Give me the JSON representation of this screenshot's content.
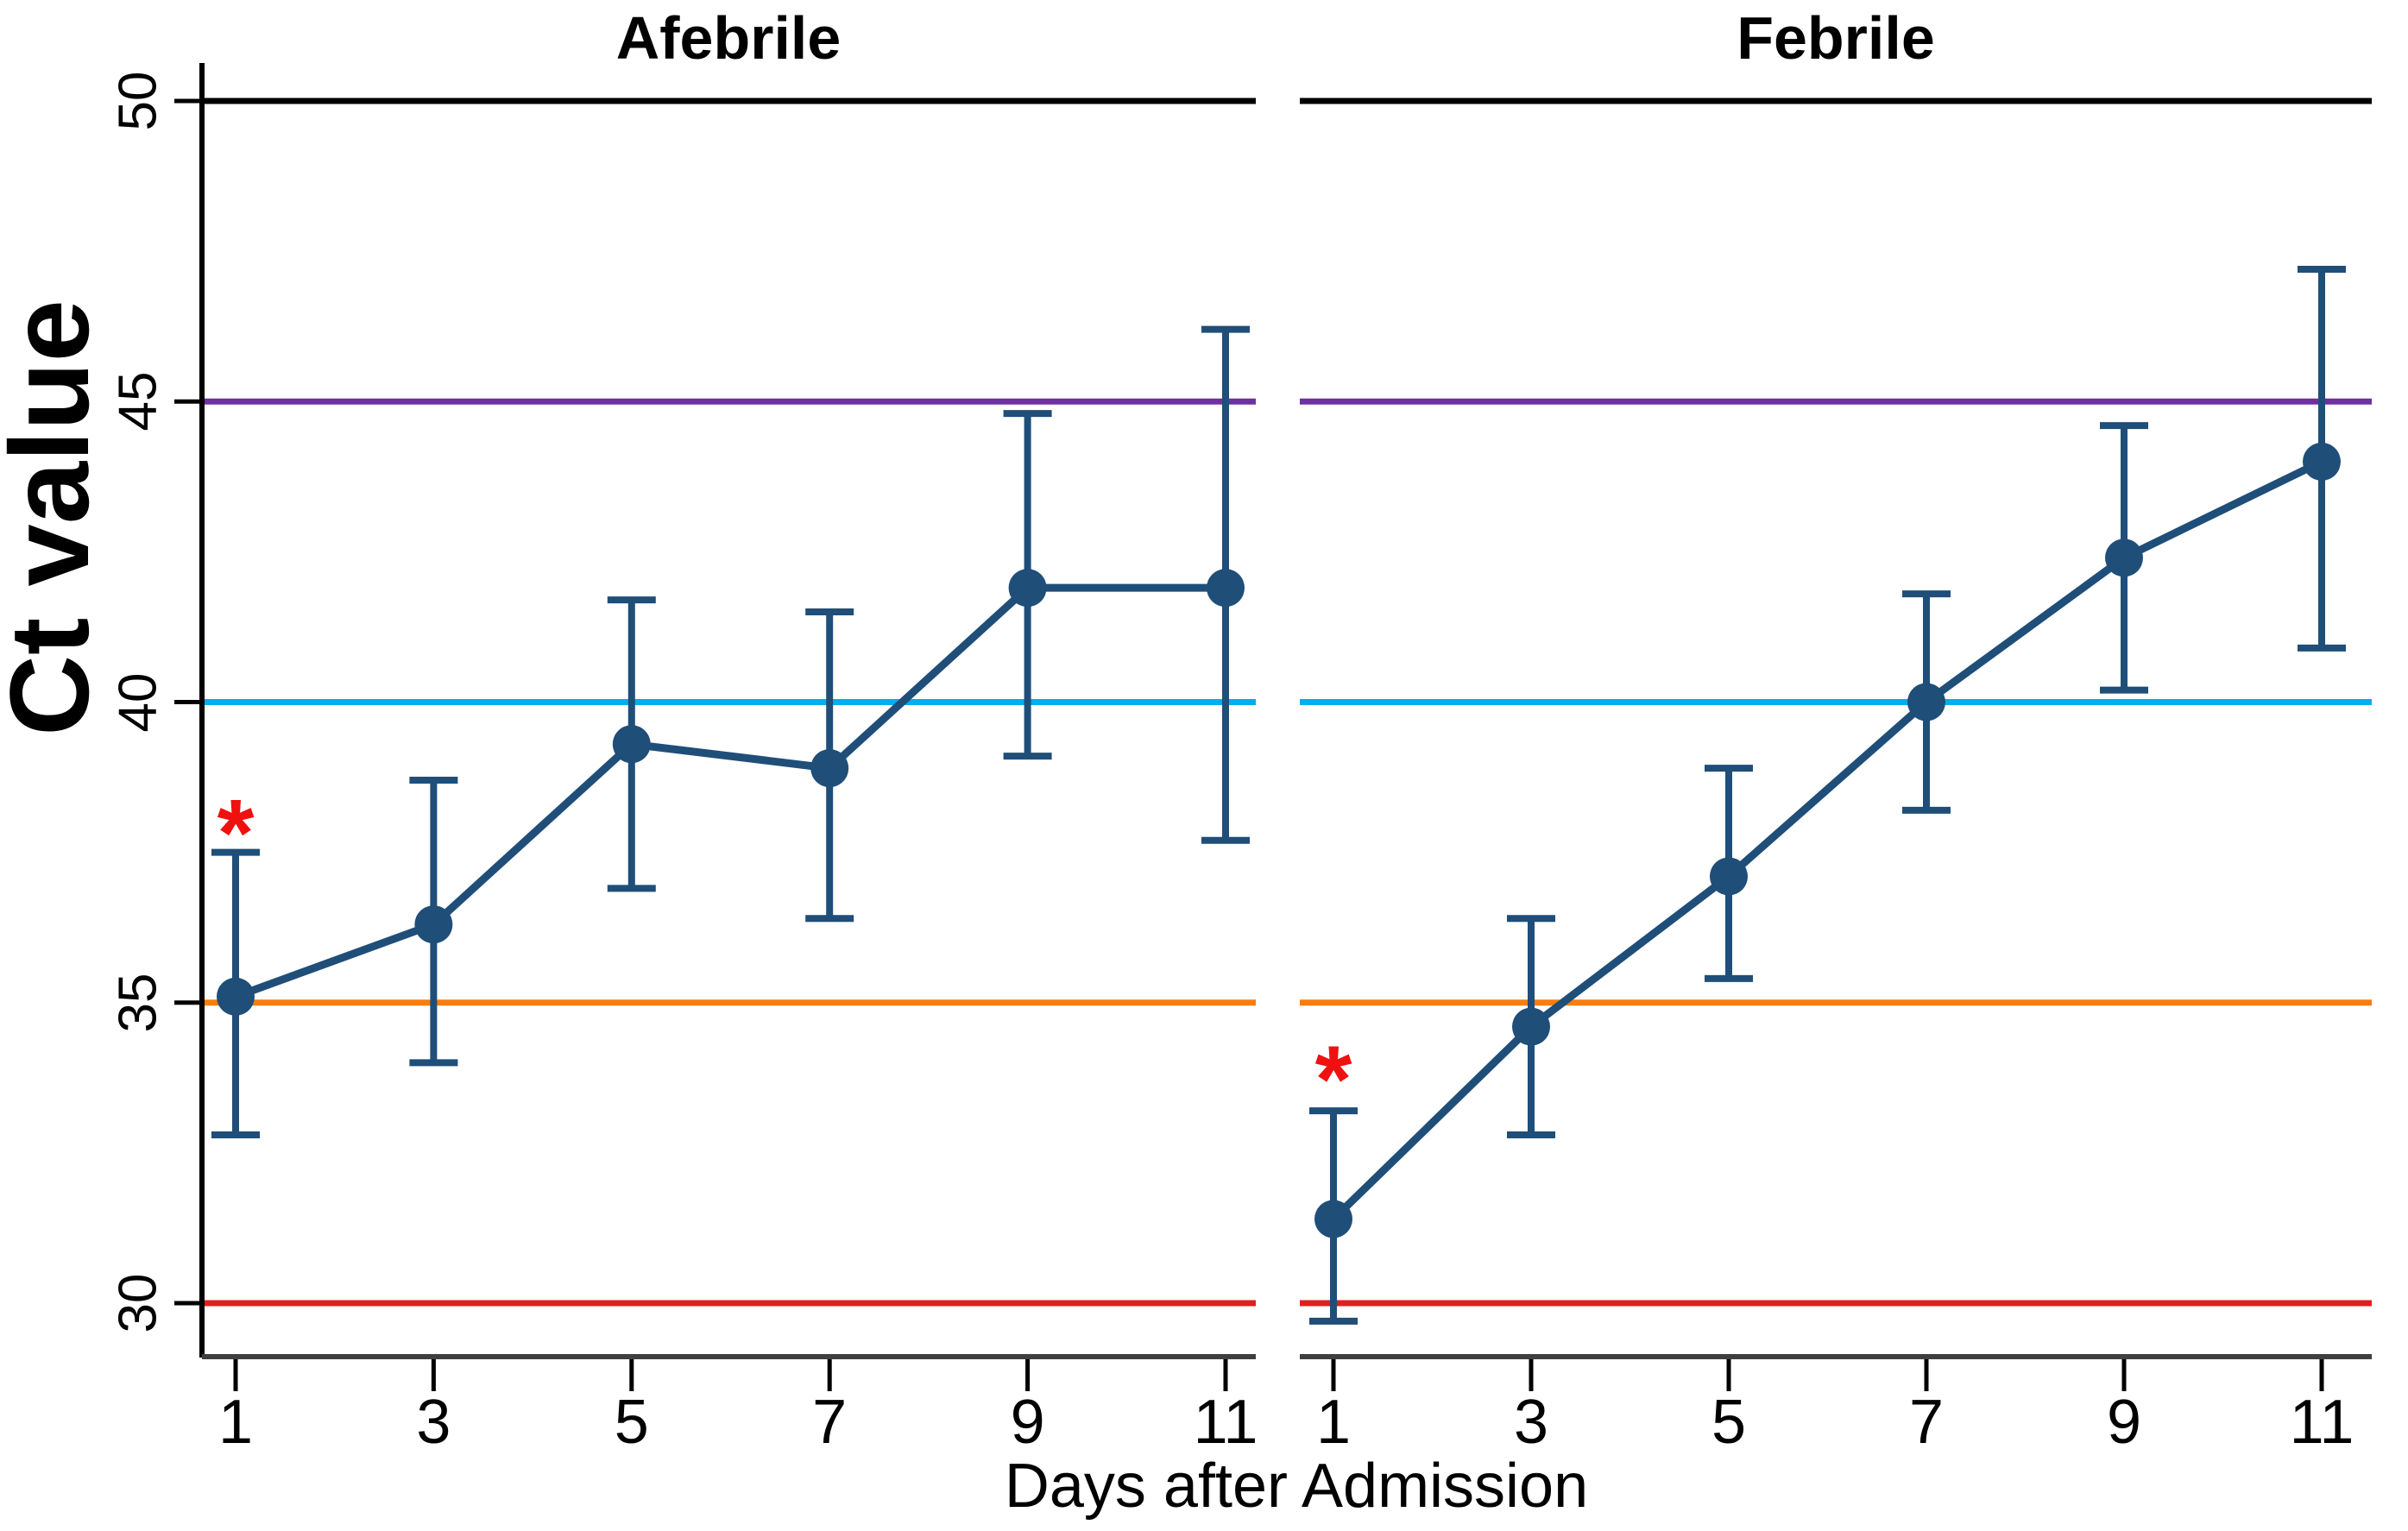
{
  "chart_data": {
    "type": "line",
    "title": "",
    "xlabel": "Days after Admission",
    "ylabel": "Ct value",
    "x_ticks": [
      1,
      3,
      5,
      7,
      9,
      11
    ],
    "y_ticks": [
      30,
      35,
      40,
      45,
      50
    ],
    "ylim": [
      29.1,
      50.6
    ],
    "xlim": [
      0.6,
      11.5
    ],
    "grid": false,
    "legend": "none",
    "series_color": "#1F4E79",
    "asterisk_color": "#F01010",
    "axis_color": "#000000",
    "x_baseline_color": "#3F3F3F",
    "reference_lines": [
      {
        "value": 50,
        "color": "#000000",
        "name": "reference-line-50"
      },
      {
        "value": 45,
        "color": "#7030A0",
        "name": "reference-line-45"
      },
      {
        "value": 40,
        "color": "#00AEEF",
        "name": "reference-line-40"
      },
      {
        "value": 35,
        "color": "#F97D0E",
        "name": "reference-line-35"
      },
      {
        "value": 30,
        "color": "#E02020",
        "name": "reference-line-30"
      }
    ],
    "panels": [
      {
        "title": "Afebrile",
        "x": [
          1,
          3,
          5,
          7,
          9,
          11
        ],
        "mean": [
          35.1,
          36.3,
          39.3,
          38.9,
          41.9,
          41.9
        ],
        "ci_low": [
          32.8,
          34.0,
          36.9,
          36.4,
          39.1,
          37.7
        ],
        "ci_high": [
          37.5,
          38.7,
          41.7,
          41.5,
          44.8,
          46.2
        ],
        "annotation": {
          "text": "*",
          "x": 1,
          "y": 38.1
        }
      },
      {
        "title": "Febrile",
        "x": [
          1,
          3,
          5,
          7,
          9,
          11
        ],
        "mean": [
          31.4,
          34.6,
          37.1,
          40.0,
          42.4,
          44.0
        ],
        "ci_low": [
          29.7,
          32.8,
          35.4,
          38.2,
          40.2,
          40.9
        ],
        "ci_high": [
          33.2,
          36.4,
          38.9,
          41.8,
          44.6,
          47.2
        ],
        "annotation": {
          "text": "*",
          "x": 1,
          "y": 34.0
        }
      }
    ]
  }
}
